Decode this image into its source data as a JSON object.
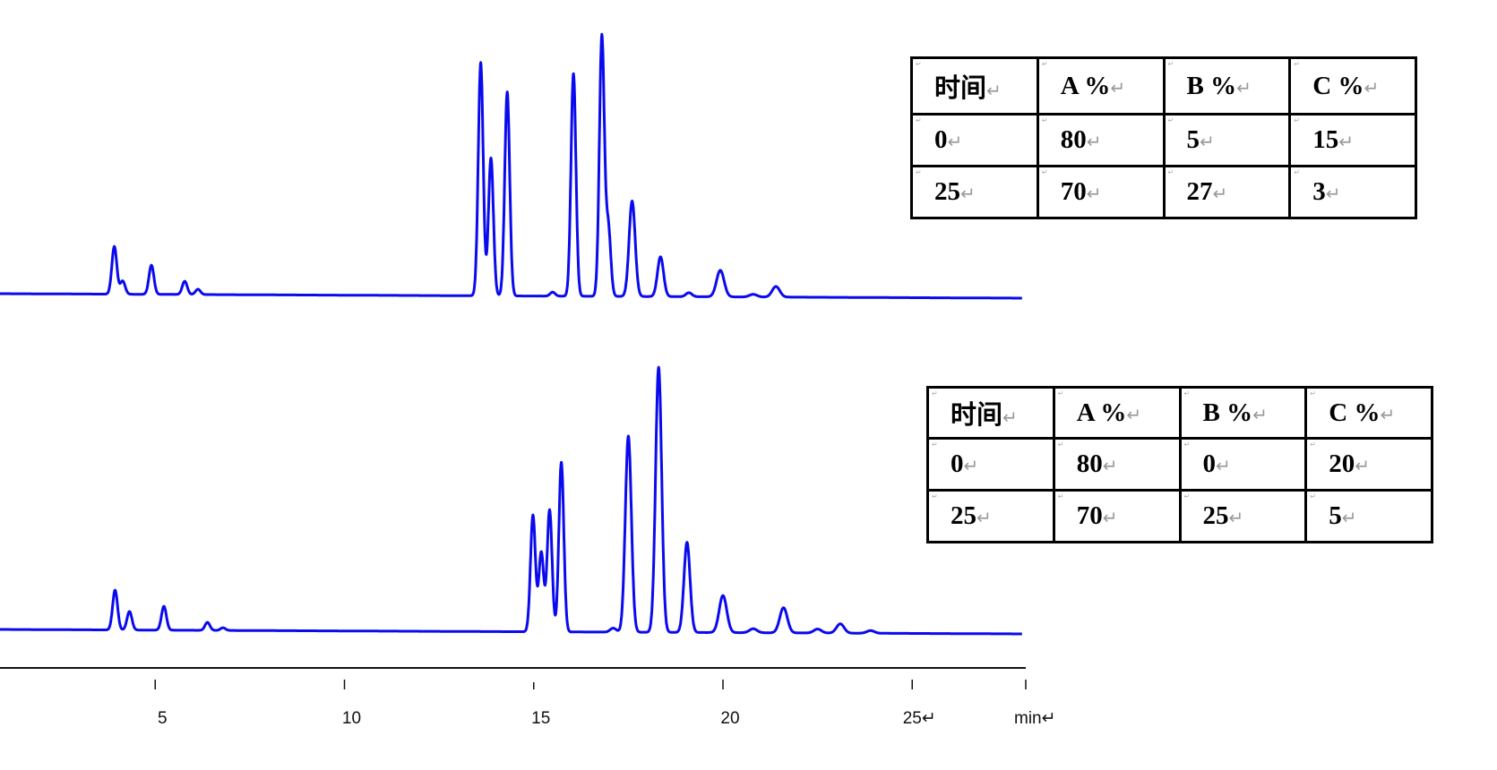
{
  "chart_data": {
    "type": "line",
    "title": "",
    "xlabel": "min",
    "xlabel_display": "min↵",
    "ylabel": "",
    "x_unit": "min",
    "xlim": [
      0,
      28
    ],
    "x_ticks": [
      5,
      10,
      15,
      20,
      25
    ],
    "x_tick_labels": [
      "5",
      "10",
      "15",
      "20",
      "25↵"
    ],
    "grid": false,
    "legend": "none",
    "line_color": "#0a0aee",
    "y_scale": "relative intensity (unlabeled axis)",
    "series": [
      {
        "x_range": [
          0.9,
          27.9
        ],
        "peaks": [
          {
            "t": 3.92,
            "h": 18
          },
          {
            "t": 4.14,
            "h": 5
          },
          {
            "t": 4.9,
            "h": 11
          },
          {
            "t": 5.78,
            "h": 5
          },
          {
            "t": 6.13,
            "h": 2
          },
          {
            "t": 13.6,
            "h": 88
          },
          {
            "t": 13.87,
            "h": 52
          },
          {
            "t": 14.3,
            "h": 77
          },
          {
            "t": 15.5,
            "h": 1.5
          },
          {
            "t": 16.05,
            "h": 84
          },
          {
            "t": 16.8,
            "h": 98
          },
          {
            "t": 16.97,
            "h": 26
          },
          {
            "t": 17.6,
            "h": 36
          },
          {
            "t": 18.35,
            "h": 15
          },
          {
            "t": 19.1,
            "h": 1.5
          },
          {
            "t": 19.93,
            "h": 10
          },
          {
            "t": 20.8,
            "h": 1
          },
          {
            "t": 21.4,
            "h": 4
          }
        ]
      },
      {
        "x_range": [
          0.9,
          27.9
        ],
        "peaks": [
          {
            "t": 3.94,
            "h": 15
          },
          {
            "t": 4.32,
            "h": 7
          },
          {
            "t": 5.23,
            "h": 9
          },
          {
            "t": 6.38,
            "h": 3
          },
          {
            "t": 6.79,
            "h": 1
          },
          {
            "t": 14.98,
            "h": 44
          },
          {
            "t": 15.2,
            "h": 30
          },
          {
            "t": 15.42,
            "h": 46
          },
          {
            "t": 15.73,
            "h": 64
          },
          {
            "t": 17.1,
            "h": 1.5
          },
          {
            "t": 17.5,
            "h": 74
          },
          {
            "t": 18.3,
            "h": 100
          },
          {
            "t": 19.05,
            "h": 34
          },
          {
            "t": 20.0,
            "h": 14
          },
          {
            "t": 20.8,
            "h": 1.5
          },
          {
            "t": 21.6,
            "h": 9.5
          },
          {
            "t": 22.5,
            "h": 1.5
          },
          {
            "t": 23.1,
            "h": 3.5
          },
          {
            "t": 23.9,
            "h": 1
          }
        ]
      }
    ]
  },
  "tables": [
    {
      "header": [
        "时间",
        "A %",
        "B %",
        "C %"
      ],
      "rows": [
        [
          "0",
          "80",
          "5",
          "15"
        ],
        [
          "25",
          "70",
          "27",
          "3"
        ]
      ]
    },
    {
      "header": [
        "时间",
        "A %",
        "B %",
        "C %"
      ],
      "rows": [
        [
          "0",
          "80",
          "0",
          "20"
        ],
        [
          "25",
          "70",
          "25",
          "5"
        ]
      ]
    }
  ],
  "paragraph_mark": "↵"
}
